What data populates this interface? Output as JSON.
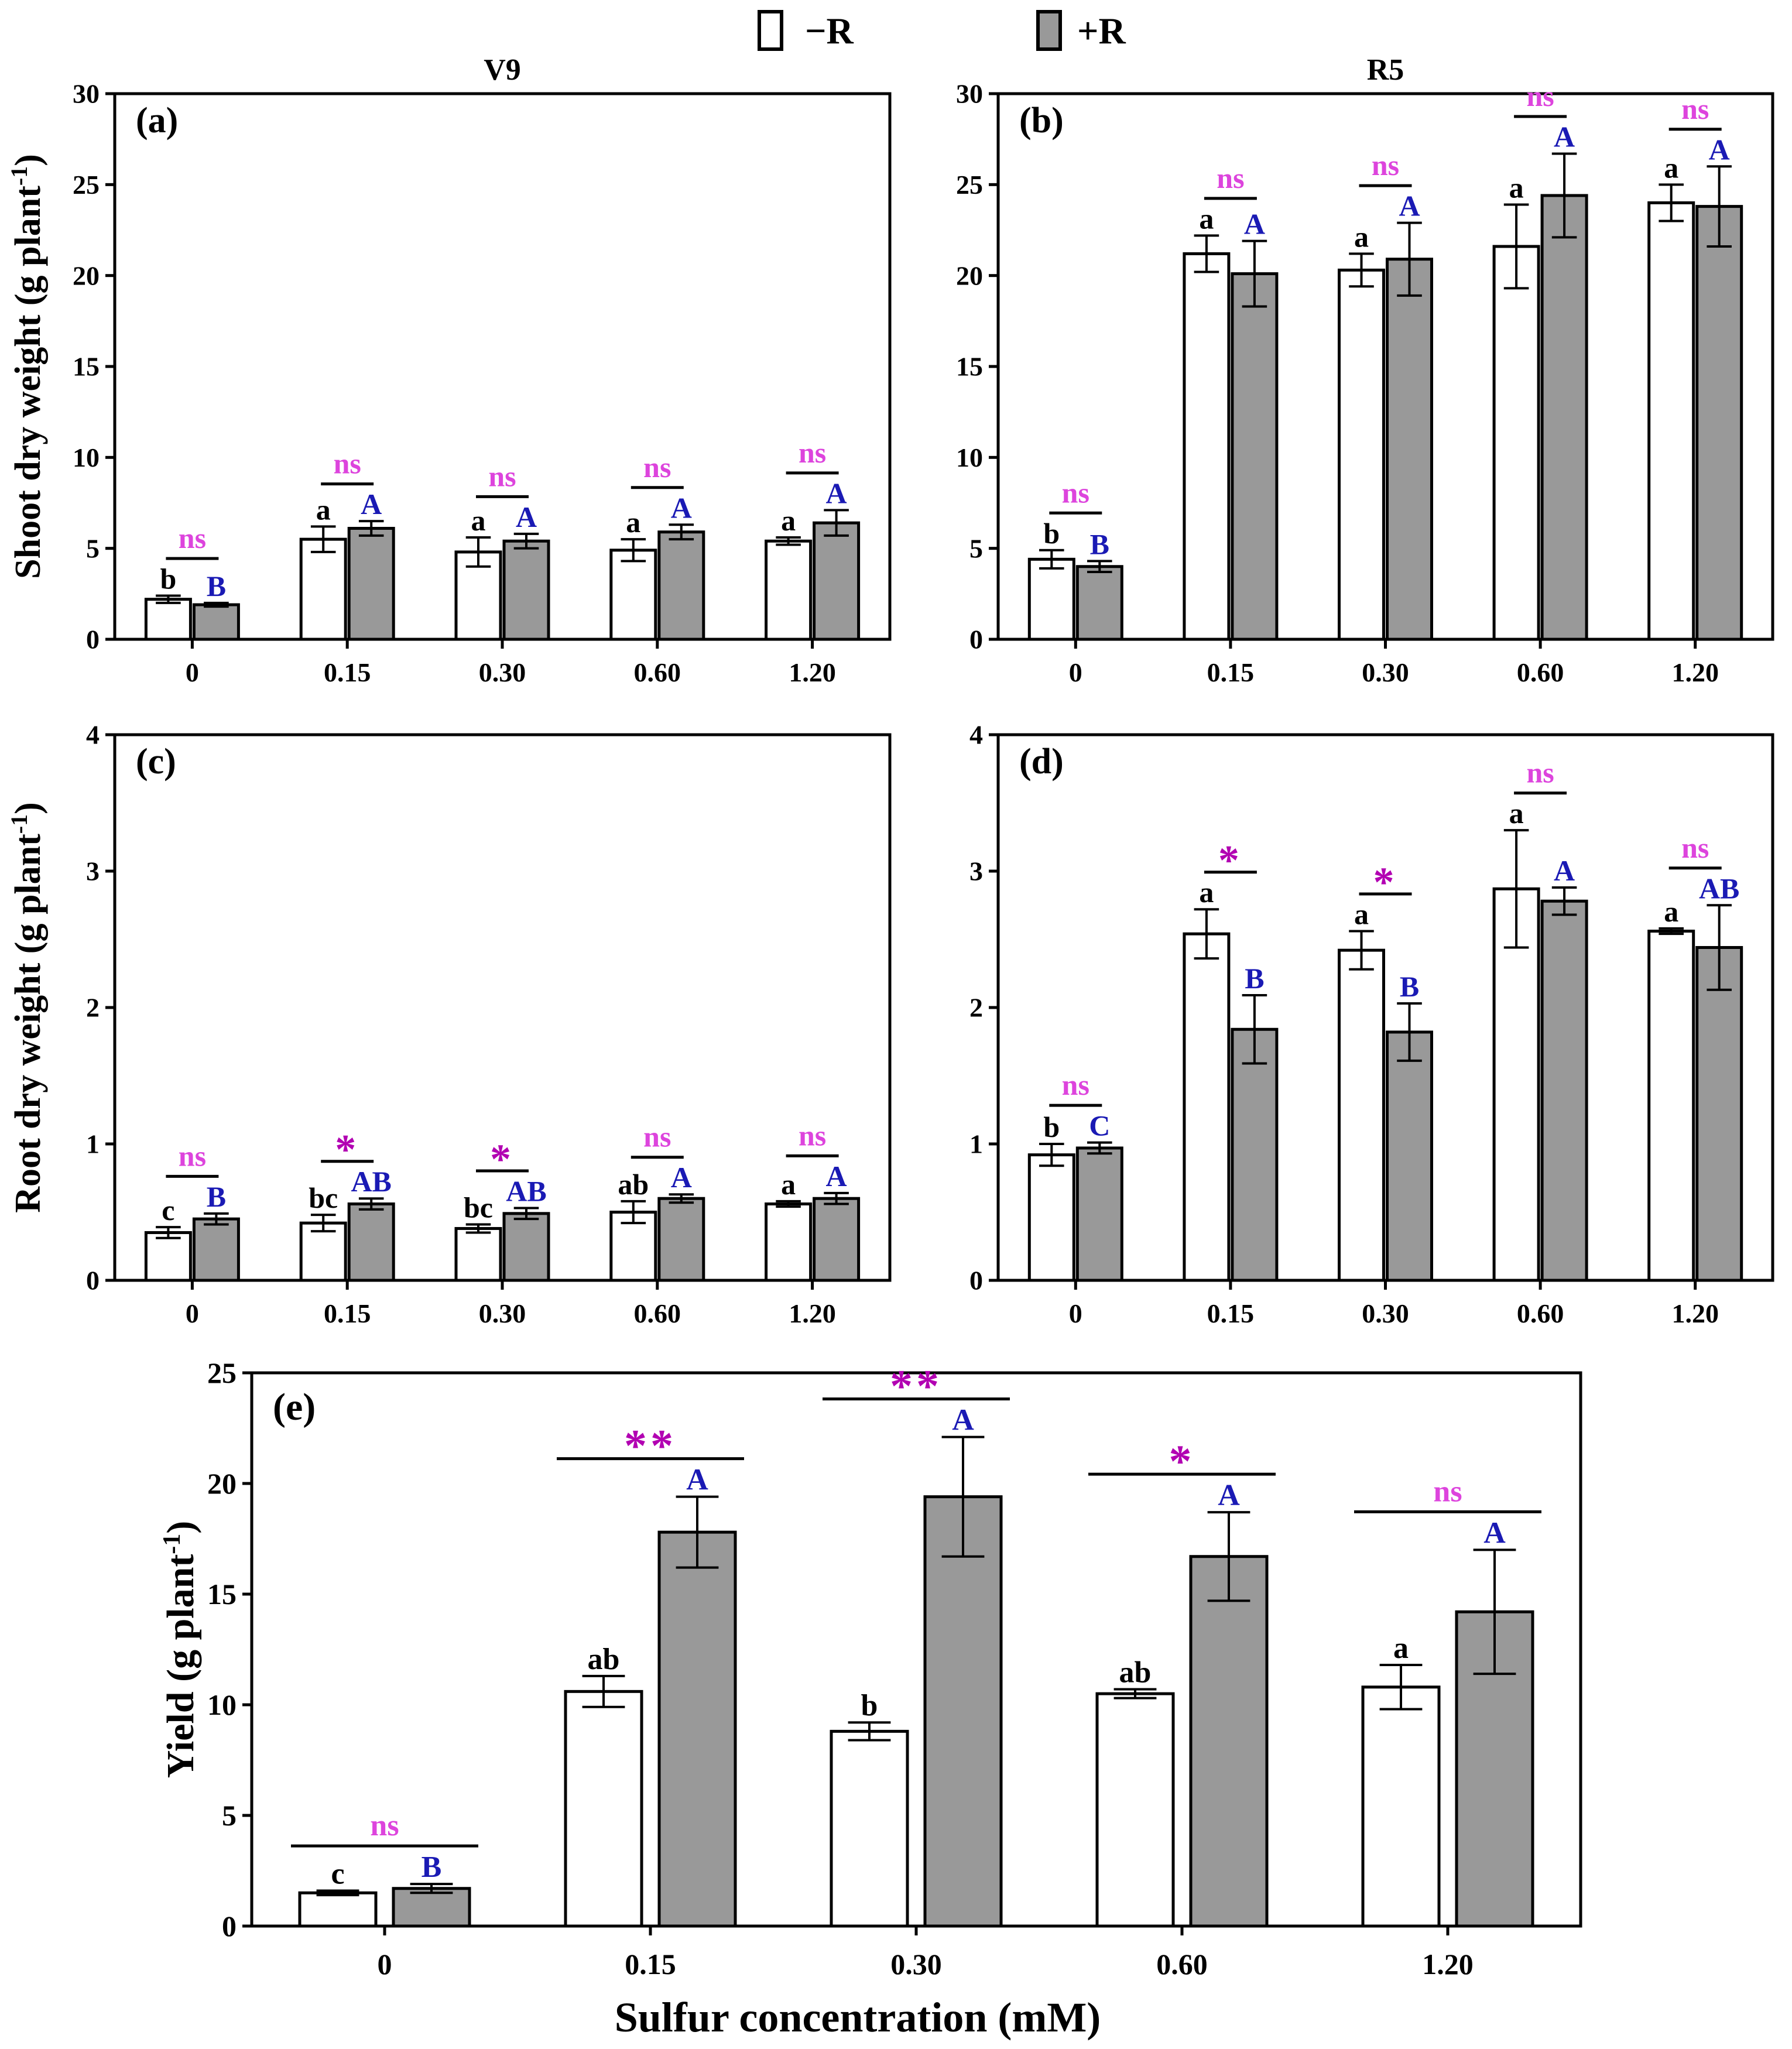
{
  "figure": {
    "legend": [
      {
        "label": "−R",
        "fill": "#ffffff"
      },
      {
        "label": "+R",
        "fill": "#999999"
      }
    ],
    "stage_titles": {
      "left": "V9",
      "right": "R5"
    },
    "xlabel": "Sulfur concentration (mM)",
    "colors": {
      "minus_r_bar": "#ffffff",
      "plus_r_bar": "#999999",
      "ns_text": "#dd44dd",
      "sig_star": "#b200b2",
      "minus_letter": "#000000",
      "plus_letter": "#1a1ab4"
    }
  },
  "chart_data": [
    {
      "id": "a",
      "type": "bar",
      "panel_label": "(a)",
      "title": "V9",
      "ylabel_main": "Shoot dry weight (g plant",
      "ylabel_sup": "-1",
      "ylabel_end": ")",
      "ylim": [
        0,
        30
      ],
      "yticks": [
        "0",
        "5",
        "10",
        "15",
        "20",
        "25",
        "30"
      ],
      "categories": [
        "0",
        "0.15",
        "0.30",
        "0.60",
        "1.20"
      ],
      "series": [
        {
          "name": "−R",
          "values": [
            2.2,
            5.5,
            4.8,
            4.9,
            5.4
          ],
          "errors": [
            0.2,
            0.7,
            0.8,
            0.6,
            0.2
          ],
          "letters": [
            "b",
            "a",
            "a",
            "a",
            "a"
          ]
        },
        {
          "name": "+R",
          "values": [
            1.9,
            6.1,
            5.4,
            5.9,
            6.4
          ],
          "errors": [
            0.1,
            0.4,
            0.4,
            0.4,
            0.7
          ],
          "letters": [
            "B",
            "A",
            "A",
            "A",
            "A"
          ]
        }
      ],
      "significance": [
        "ns",
        "ns",
        "ns",
        "ns",
        "ns"
      ]
    },
    {
      "id": "b",
      "type": "bar",
      "panel_label": "(b)",
      "title": "R5",
      "ylabel_main": "",
      "ylabel_sup": "",
      "ylabel_end": "",
      "ylim": [
        0,
        30
      ],
      "yticks": [
        "0",
        "5",
        "10",
        "15",
        "20",
        "25",
        "30"
      ],
      "categories": [
        "0",
        "0.15",
        "0.30",
        "0.60",
        "1.20"
      ],
      "series": [
        {
          "name": "−R",
          "values": [
            4.4,
            21.2,
            20.3,
            21.6,
            24.0
          ],
          "errors": [
            0.5,
            1.0,
            0.9,
            2.3,
            1.0
          ],
          "letters": [
            "b",
            "a",
            "a",
            "a",
            "a"
          ]
        },
        {
          "name": "+R",
          "values": [
            4.0,
            20.1,
            20.9,
            24.4,
            23.8
          ],
          "errors": [
            0.3,
            1.8,
            2.0,
            2.3,
            2.2
          ],
          "letters": [
            "B",
            "A",
            "A",
            "A",
            "A"
          ]
        }
      ],
      "significance": [
        "ns",
        "ns",
        "ns",
        "ns",
        "ns"
      ]
    },
    {
      "id": "c",
      "type": "bar",
      "panel_label": "(c)",
      "title": "",
      "ylabel_main": "Root dry weight (g plant",
      "ylabel_sup": "-1",
      "ylabel_end": ")",
      "ylim": [
        0,
        4
      ],
      "yticks": [
        "0",
        "1",
        "2",
        "3",
        "4"
      ],
      "categories": [
        "0",
        "0.15",
        "0.30",
        "0.60",
        "1.20"
      ],
      "series": [
        {
          "name": "−R",
          "values": [
            0.35,
            0.42,
            0.38,
            0.5,
            0.56
          ],
          "errors": [
            0.04,
            0.06,
            0.03,
            0.08,
            0.02
          ],
          "letters": [
            "c",
            "bc",
            "bc",
            "ab",
            "a"
          ]
        },
        {
          "name": "+R",
          "values": [
            0.45,
            0.56,
            0.49,
            0.6,
            0.6
          ],
          "errors": [
            0.04,
            0.04,
            0.04,
            0.03,
            0.04
          ],
          "letters": [
            "B",
            "AB",
            "AB",
            "A",
            "A"
          ]
        }
      ],
      "significance": [
        "ns",
        "*",
        "*",
        "ns",
        "ns"
      ]
    },
    {
      "id": "d",
      "type": "bar",
      "panel_label": "(d)",
      "title": "",
      "ylabel_main": "",
      "ylabel_sup": "",
      "ylabel_end": "",
      "ylim": [
        0,
        4
      ],
      "yticks": [
        "0",
        "1",
        "2",
        "3",
        "4"
      ],
      "categories": [
        "0",
        "0.15",
        "0.30",
        "0.60",
        "1.20"
      ],
      "series": [
        {
          "name": "−R",
          "values": [
            0.92,
            2.54,
            2.42,
            2.87,
            2.56
          ],
          "errors": [
            0.08,
            0.18,
            0.14,
            0.43,
            0.02
          ],
          "letters": [
            "b",
            "a",
            "a",
            "a",
            "a"
          ]
        },
        {
          "name": "+R",
          "values": [
            0.97,
            1.84,
            1.82,
            2.78,
            2.44
          ],
          "errors": [
            0.04,
            0.25,
            0.21,
            0.1,
            0.31
          ],
          "letters": [
            "C",
            "B",
            "B",
            "A",
            "AB"
          ]
        }
      ],
      "significance": [
        "ns",
        "*",
        "*",
        "ns",
        "ns"
      ]
    },
    {
      "id": "e",
      "type": "bar",
      "panel_label": "(e)",
      "title": "",
      "ylabel_main": "Yield (g plant",
      "ylabel_sup": "-1",
      "ylabel_end": ")",
      "ylim": [
        0,
        25
      ],
      "yticks": [
        "0",
        "5",
        "10",
        "15",
        "20",
        "25"
      ],
      "categories": [
        "0",
        "0.15",
        "0.30",
        "0.60",
        "1.20"
      ],
      "series": [
        {
          "name": "−R",
          "values": [
            1.5,
            10.6,
            8.8,
            10.5,
            10.8
          ],
          "errors": [
            0.1,
            0.7,
            0.4,
            0.2,
            1.0
          ],
          "letters": [
            "c",
            "ab",
            "b",
            "ab",
            "a"
          ]
        },
        {
          "name": "+R",
          "values": [
            1.7,
            17.8,
            19.4,
            16.7,
            14.2
          ],
          "errors": [
            0.2,
            1.6,
            2.7,
            2.0,
            2.8
          ],
          "letters": [
            "B",
            "A",
            "A",
            "A",
            "A"
          ]
        }
      ],
      "significance": [
        "ns",
        "**",
        "**",
        "*",
        "ns"
      ]
    }
  ]
}
